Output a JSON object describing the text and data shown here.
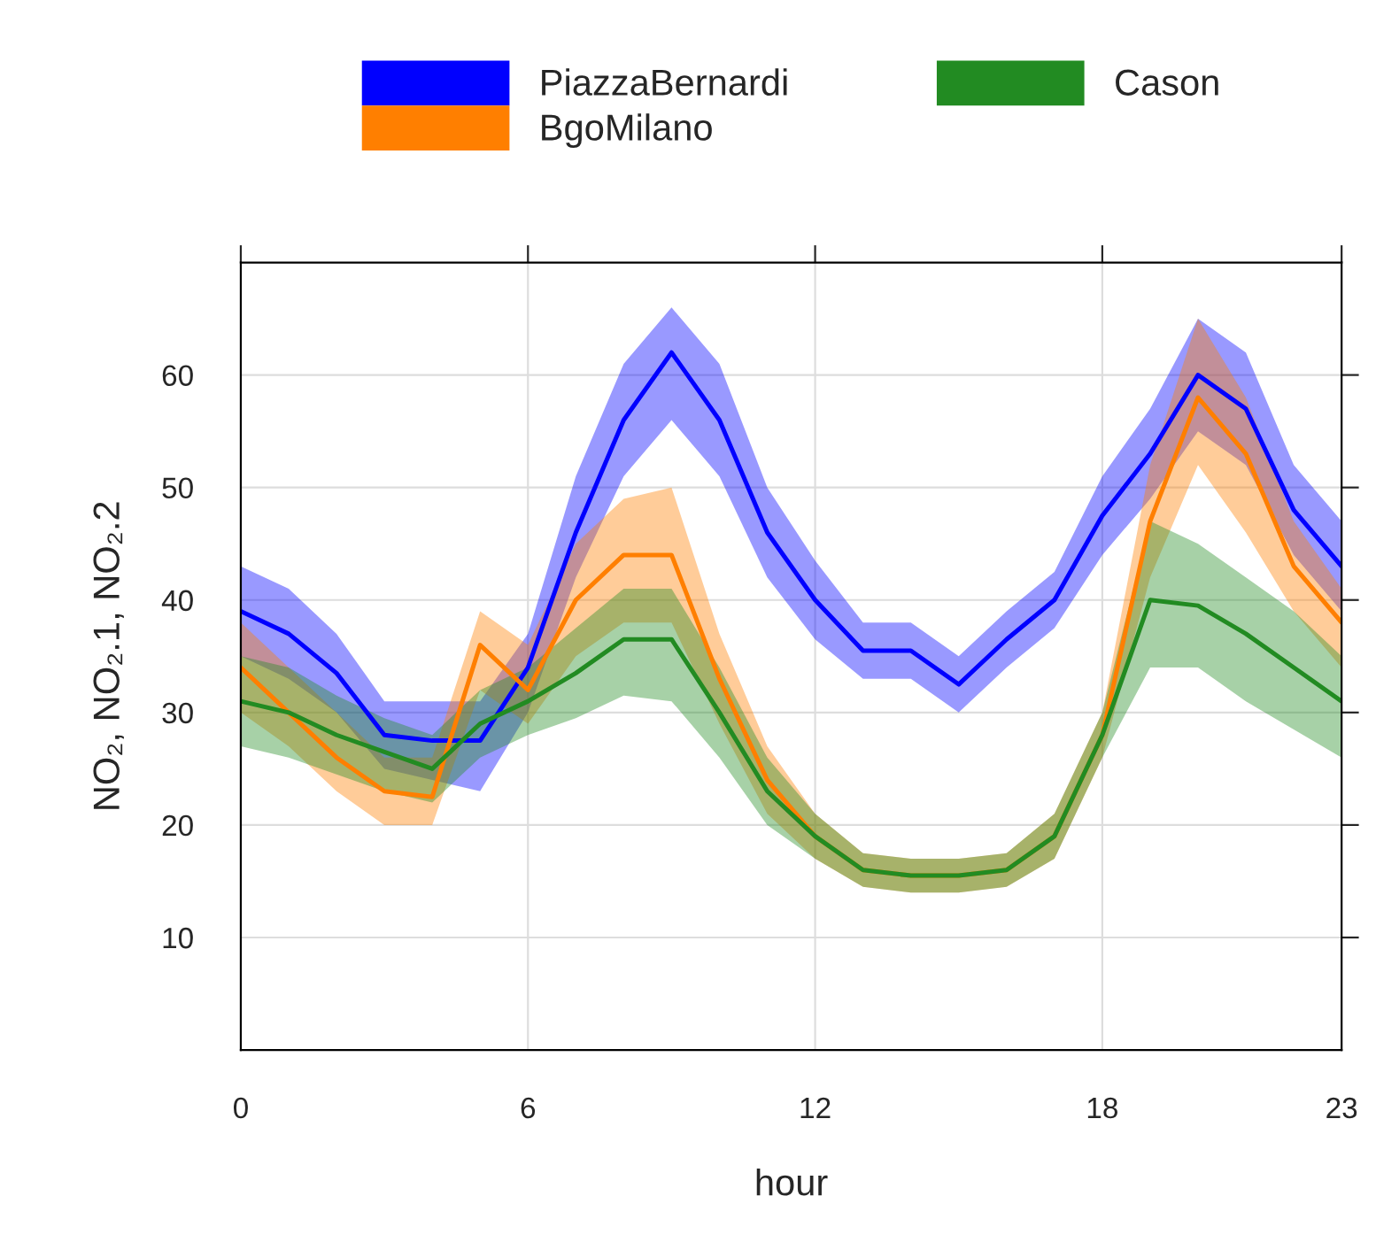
{
  "chart_data": {
    "type": "line",
    "xlabel": "hour",
    "ylabel": "NO₂, NO₂.1, NO₂.2",
    "x": [
      0,
      1,
      2,
      3,
      4,
      5,
      6,
      7,
      8,
      9,
      10,
      11,
      12,
      13,
      14,
      15,
      16,
      17,
      18,
      19,
      20,
      21,
      22,
      23
    ],
    "series": [
      {
        "name": "PiazzaBernardi",
        "color": "#0000ff",
        "values": [
          39,
          37,
          33.5,
          28,
          27.5,
          27.5,
          34,
          46,
          56,
          62,
          56,
          46,
          40,
          35.5,
          35.5,
          32.5,
          36.5,
          40,
          47.5,
          53,
          60,
          57,
          48,
          43
        ],
        "lower": [
          35,
          33,
          30,
          25,
          24,
          23,
          30,
          42,
          51,
          56,
          51,
          42,
          36.5,
          33,
          33,
          30,
          34,
          37.5,
          44,
          49,
          55,
          52,
          44,
          39
        ],
        "upper": [
          43,
          41,
          37,
          31,
          31,
          31,
          37,
          51,
          61,
          66,
          61,
          50,
          43.5,
          38,
          38,
          35,
          39,
          42.5,
          51,
          57,
          65,
          62,
          52,
          47
        ]
      },
      {
        "name": "BgoMilano",
        "color": "#ff7f00",
        "values": [
          34,
          30,
          26,
          23,
          22.5,
          36,
          32,
          40,
          44,
          44,
          33,
          24,
          19,
          16,
          15.5,
          15.5,
          16,
          19,
          28,
          47,
          58,
          53,
          43,
          38
        ],
        "lower": [
          30,
          27,
          23,
          20,
          20,
          32,
          29,
          35,
          38,
          38,
          29,
          21,
          17,
          14.5,
          14,
          14,
          14.5,
          17,
          26,
          42,
          52,
          46,
          39,
          34
        ],
        "upper": [
          38,
          34,
          30,
          26,
          26,
          39,
          36,
          45,
          49,
          50,
          37,
          27,
          21,
          17.5,
          17,
          17,
          17.5,
          21,
          30,
          52,
          65,
          58,
          47,
          41
        ]
      },
      {
        "name": "Cason",
        "color": "#228b22",
        "values": [
          31,
          30,
          28,
          26.5,
          25,
          29,
          31,
          33.5,
          36.5,
          36.5,
          30,
          23,
          19,
          16,
          15.5,
          15.5,
          16,
          19,
          28,
          40,
          39.5,
          37,
          34,
          31
        ],
        "lower": [
          27,
          26,
          24.5,
          23,
          22,
          26,
          28,
          29.5,
          31.5,
          31,
          26,
          20,
          17,
          14.5,
          14,
          14,
          14.5,
          17,
          26,
          34,
          34,
          31,
          28.5,
          26
        ],
        "upper": [
          35,
          34,
          31.5,
          29.5,
          28,
          32,
          34,
          37.5,
          41,
          41,
          34,
          26,
          21,
          17.5,
          17,
          17,
          17.5,
          21,
          30,
          47,
          45,
          42,
          39,
          35
        ]
      }
    ],
    "xlim": [
      0,
      23
    ],
    "xticks": [
      0,
      6,
      12,
      18,
      23
    ],
    "ylim": [
      0,
      70
    ],
    "yticks": [
      10,
      20,
      30,
      40,
      50,
      60
    ],
    "grid": true,
    "legend": "top",
    "marker": "none",
    "line_style": "solid"
  }
}
